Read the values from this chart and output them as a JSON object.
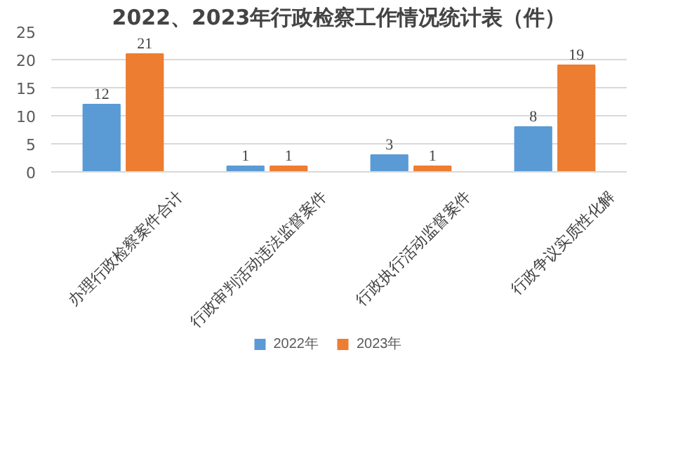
{
  "chart_data": {
    "type": "bar",
    "title": "2022、2023年行政检察工作情况统计表（件）",
    "categories": [
      "办理行政检察案件合计",
      "行政审判活动违法监督案件",
      "行政执行活动监督案件",
      "行政争议实质性化解"
    ],
    "series": [
      {
        "name": "2022年",
        "color": "#5b9bd5",
        "values": [
          12,
          1,
          3,
          8
        ]
      },
      {
        "name": "2023年",
        "color": "#ed7d31",
        "values": [
          21,
          1,
          1,
          19
        ]
      }
    ],
    "ylim": [
      0,
      25
    ],
    "yticks": [
      0,
      5,
      10,
      15,
      20,
      25
    ],
    "grid": "y",
    "legend": "bottom",
    "data_labels": true
  }
}
